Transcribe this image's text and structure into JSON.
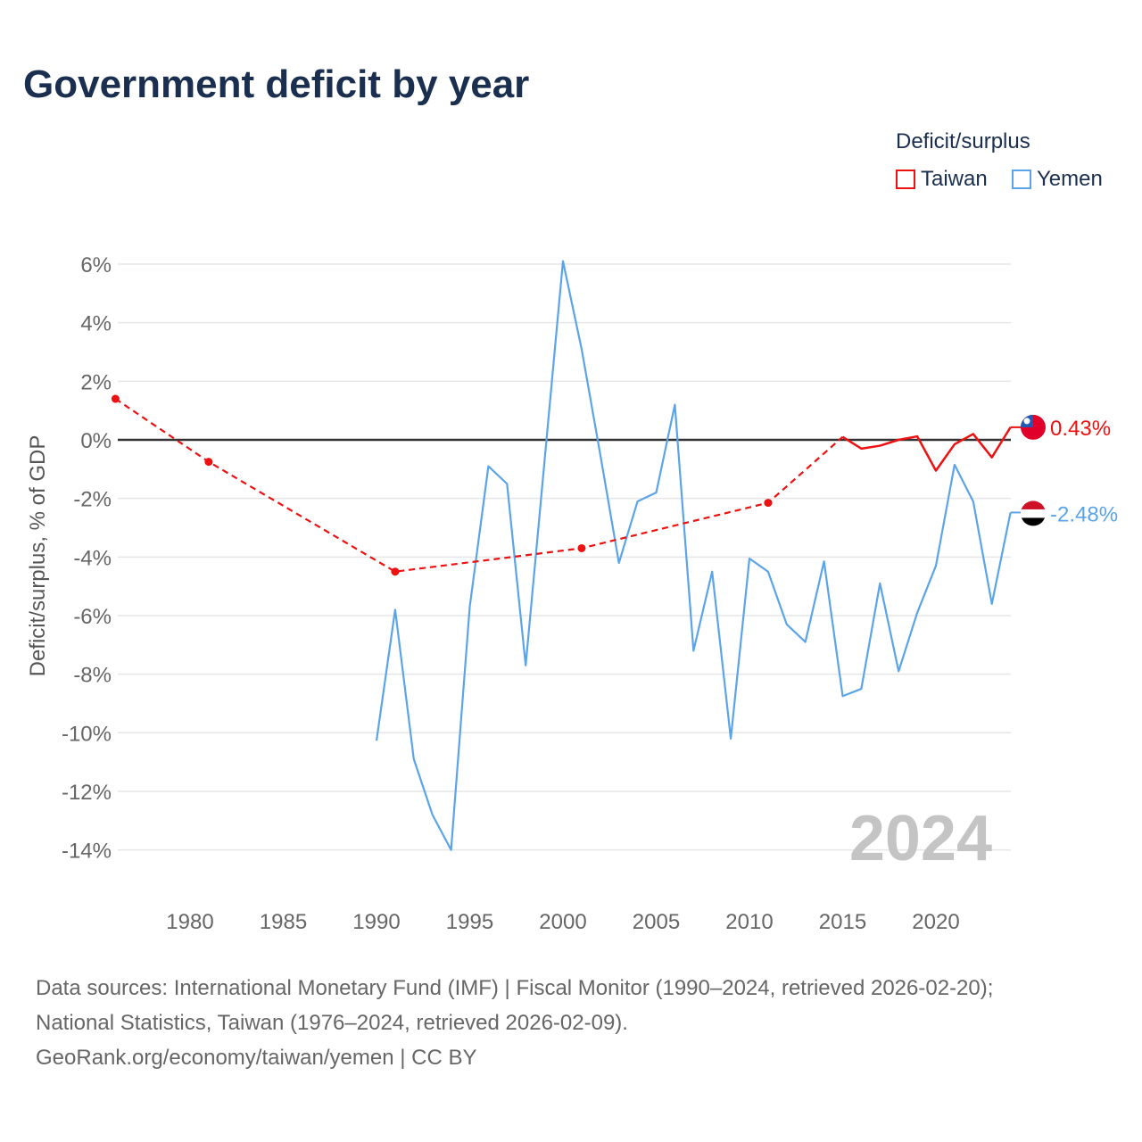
{
  "title": "Government deficit by year",
  "legend": {
    "title": "Deficit/surplus",
    "items": [
      {
        "name": "Taiwan",
        "color": "#ee1111"
      },
      {
        "name": "Yemen",
        "color": "#5ba4ea"
      }
    ]
  },
  "watermark_year": "2024",
  "sources": [
    "Data sources: International Monetary Fund (IMF) | Fiscal Monitor (1990–2024, retrieved 2026-02-20);",
    "National Statistics, Taiwan (1976–2024, retrieved 2026-02-09).",
    "GeoRank.org/economy/taiwan/yemen | CC BY"
  ],
  "chart_data": {
    "type": "line",
    "title": "Government deficit by year",
    "xlabel": "",
    "ylabel": "Deficit/surplus, % of GDP",
    "xlim": [
      1976,
      2024
    ],
    "ylim": [
      -14,
      6
    ],
    "x_ticks": [
      1980,
      1985,
      1990,
      1995,
      2000,
      2005,
      2010,
      2015,
      2020
    ],
    "y_ticks": [
      6,
      4,
      2,
      0,
      -2,
      -4,
      -6,
      -8,
      -10,
      -12,
      -14
    ],
    "y_tick_labels": [
      "6%",
      "4%",
      "2%",
      "0%",
      "-2%",
      "-4%",
      "-6%",
      "-8%",
      "-10%",
      "-12%",
      "-14%"
    ],
    "grid": true,
    "legend_position": "top-right",
    "series": [
      {
        "name": "Taiwan",
        "color": "#ee1111",
        "end_label": "0.43%",
        "sparse_points": [
          [
            1976,
            1.4
          ],
          [
            1981,
            -0.75
          ],
          [
            1991,
            -4.5
          ],
          [
            2001,
            -3.7
          ],
          [
            2011,
            -2.15
          ],
          [
            2015,
            0.1
          ]
        ],
        "points": [
          [
            2015,
            0.1
          ],
          [
            2016,
            -0.3
          ],
          [
            2017,
            -0.2
          ],
          [
            2018,
            0.0
          ],
          [
            2019,
            0.12
          ],
          [
            2020,
            -1.05
          ],
          [
            2021,
            -0.15
          ],
          [
            2022,
            0.2
          ],
          [
            2023,
            -0.6
          ],
          [
            2024,
            0.43
          ]
        ]
      },
      {
        "name": "Yemen",
        "color": "#5ba4ea",
        "end_label": "-2.48%",
        "points": [
          [
            1990,
            -10.27
          ],
          [
            1991,
            -5.8
          ],
          [
            1992,
            -10.9
          ],
          [
            1993,
            -12.8
          ],
          [
            1994,
            -14.0
          ],
          [
            1995,
            -5.7
          ],
          [
            1996,
            -0.9
          ],
          [
            1997,
            -1.5
          ],
          [
            1998,
            -7.7
          ],
          [
            1999,
            -0.8
          ],
          [
            2000,
            6.1
          ],
          [
            2001,
            3.1
          ],
          [
            2002,
            -0.5
          ],
          [
            2003,
            -4.2
          ],
          [
            2004,
            -2.1
          ],
          [
            2005,
            -1.8
          ],
          [
            2006,
            1.2
          ],
          [
            2007,
            -7.2
          ],
          [
            2008,
            -4.5
          ],
          [
            2009,
            -10.2
          ],
          [
            2010,
            -4.05
          ],
          [
            2011,
            -4.5
          ],
          [
            2012,
            -6.3
          ],
          [
            2013,
            -6.9
          ],
          [
            2014,
            -4.15
          ],
          [
            2015,
            -8.75
          ],
          [
            2016,
            -8.5
          ],
          [
            2017,
            -4.9
          ],
          [
            2018,
            -7.9
          ],
          [
            2019,
            -5.9
          ],
          [
            2020,
            -4.3
          ],
          [
            2021,
            -0.85
          ],
          [
            2022,
            -2.1
          ],
          [
            2023,
            -5.6
          ],
          [
            2024,
            -2.48
          ]
        ]
      }
    ]
  }
}
